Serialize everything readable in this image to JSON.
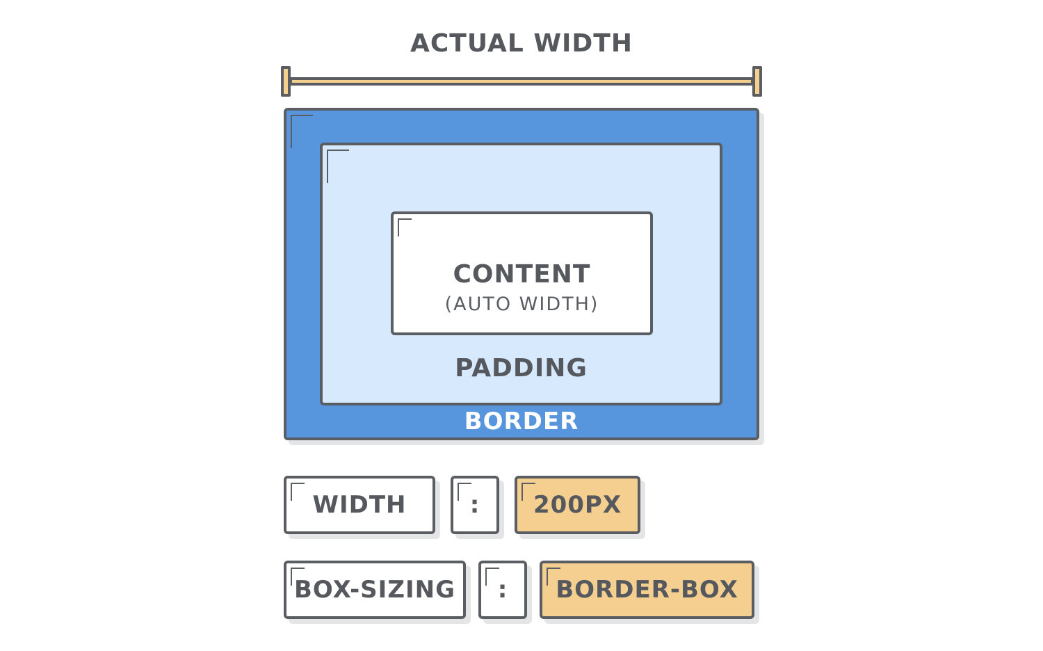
{
  "diagram": {
    "actual_width_label": "ACTUAL WIDTH",
    "content_label": "CONTENT",
    "content_sub_label": "(AUTO WIDTH)",
    "padding_label": "PADDING",
    "border_label": "BORDER"
  },
  "declarations": [
    {
      "property": "WIDTH",
      "colon": ":",
      "value": "200PX"
    },
    {
      "property": "BOX-SIZING",
      "colon": ":",
      "value": "BORDER-BOX"
    }
  ],
  "colors": {
    "border_fill": "#5795dc",
    "padding_fill": "#d7e9fd",
    "content_fill": "#ffffff",
    "value_fill": "#f4cf8f",
    "outline": "#5a5d62"
  }
}
